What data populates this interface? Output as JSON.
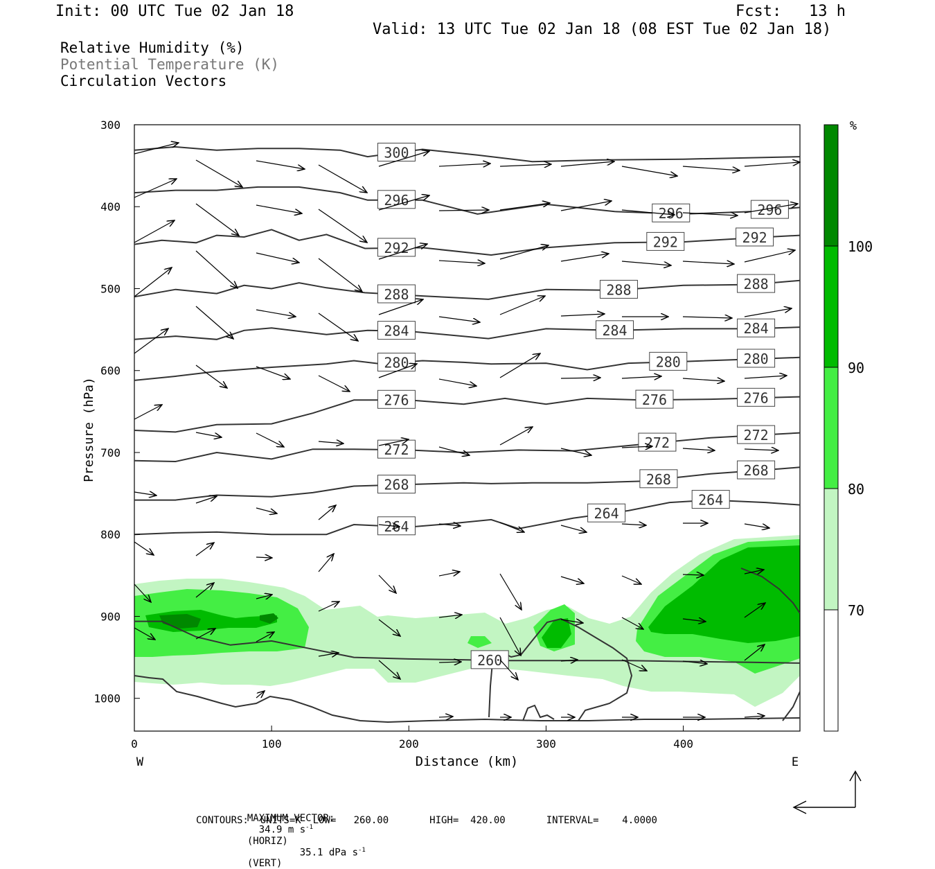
{
  "header": {
    "init": "Init: 00 UTC Tue 02 Jan 18",
    "fcst_label": "Fcst:",
    "fcst_value": "13 h",
    "valid": "Valid: 13 UTC Tue 02 Jan 18 (08 EST Tue 02 Jan 18)"
  },
  "legend": {
    "rh": "Relative Humidity (%)",
    "theta": "Potential Temperature (K)",
    "vectors": "Circulation Vectors"
  },
  "footer": {
    "max_vector_label": "MAXIMUM VECTOR:",
    "max_horiz": "34.9 m s",
    "horiz_tag": "(HORIZ)",
    "max_vert": "35.1 dPa s",
    "vert_tag": "(VERT)",
    "exponent": "-1",
    "contours": "CONTOURS:  UNITS=K  LOW=   260.00       HIGH=  420.00       INTERVAL=    4.0000"
  },
  "chart_data": {
    "type": "heatmap",
    "xlabel": "Distance (km)",
    "ylabel": "Pressure (hPa)",
    "x_left_label": "W",
    "x_right_label": "E",
    "xlim": [
      0,
      485
    ],
    "ylim": [
      1040,
      300
    ],
    "x_ticks": [
      0,
      100,
      200,
      300,
      400
    ],
    "y_ticks": [
      300,
      400,
      500,
      600,
      700,
      800,
      900,
      1000
    ],
    "colorbar": {
      "unit": "%",
      "levels": [
        70,
        80,
        90,
        100
      ],
      "colors": [
        "#ffffff",
        "#c2f5c2",
        "#44ee44",
        "#00bb00",
        "#008800"
      ]
    },
    "theta_contours": [
      {
        "value": 300,
        "label_x": 191,
        "points": [
          [
            0,
            331
          ],
          [
            30,
            327
          ],
          [
            60,
            331
          ],
          [
            90,
            329
          ],
          [
            120,
            329
          ],
          [
            150,
            331
          ],
          [
            170,
            339
          ],
          [
            210,
            330
          ],
          [
            250,
            337
          ],
          [
            290,
            345
          ],
          [
            340,
            343
          ],
          [
            400,
            342
          ],
          [
            485,
            339
          ]
        ]
      },
      {
        "value": 296,
        "label_x": 191,
        "points": [
          [
            0,
            383
          ],
          [
            30,
            380
          ],
          [
            60,
            380
          ],
          [
            90,
            376
          ],
          [
            120,
            376
          ],
          [
            150,
            383
          ],
          [
            170,
            392
          ],
          [
            210,
            392
          ],
          [
            250,
            409
          ],
          [
            300,
            397
          ],
          [
            350,
            406
          ],
          [
            400,
            409
          ],
          [
            450,
            406
          ],
          [
            485,
            401
          ]
        ]
      },
      {
        "value": 296,
        "label_x": 391,
        "points": []
      },
      {
        "value": 296,
        "label_x": 463,
        "points": []
      },
      {
        "value": 292,
        "label_x": 191,
        "points": [
          [
            0,
            446
          ],
          [
            20,
            441
          ],
          [
            45,
            444
          ],
          [
            60,
            435
          ],
          [
            80,
            437
          ],
          [
            100,
            428
          ],
          [
            120,
            441
          ],
          [
            140,
            434
          ],
          [
            168,
            451
          ],
          [
            210,
            450
          ],
          [
            260,
            459
          ],
          [
            300,
            450
          ],
          [
            350,
            444
          ],
          [
            400,
            443
          ],
          [
            450,
            438
          ],
          [
            485,
            435
          ]
        ]
      },
      {
        "value": 292,
        "label_x": 387,
        "points": []
      },
      {
        "value": 292,
        "label_x": 452,
        "points": []
      },
      {
        "value": 288,
        "label_x": 191,
        "points": [
          [
            0,
            510
          ],
          [
            30,
            501
          ],
          [
            60,
            506
          ],
          [
            80,
            496
          ],
          [
            100,
            500
          ],
          [
            120,
            493
          ],
          [
            140,
            499
          ],
          [
            168,
            505
          ],
          [
            210,
            509
          ],
          [
            258,
            513
          ],
          [
            300,
            501
          ],
          [
            350,
            502
          ],
          [
            400,
            496
          ],
          [
            450,
            495
          ],
          [
            485,
            490
          ]
        ]
      },
      {
        "value": 288,
        "label_x": 353,
        "points": []
      },
      {
        "value": 288,
        "label_x": 453,
        "points": []
      },
      {
        "value": 284,
        "label_x": 191,
        "points": [
          [
            0,
            562
          ],
          [
            30,
            558
          ],
          [
            60,
            562
          ],
          [
            80,
            551
          ],
          [
            100,
            548
          ],
          [
            140,
            556
          ],
          [
            170,
            551
          ],
          [
            200,
            552
          ],
          [
            258,
            561
          ],
          [
            300,
            549
          ],
          [
            350,
            551
          ],
          [
            400,
            549
          ],
          [
            450,
            549
          ],
          [
            485,
            547
          ]
        ]
      },
      {
        "value": 284,
        "label_x": 350,
        "points": []
      },
      {
        "value": 284,
        "label_x": 453,
        "points": []
      },
      {
        "value": 280,
        "label_x": 191,
        "points": [
          [
            0,
            612
          ],
          [
            30,
            607
          ],
          [
            60,
            601
          ],
          [
            100,
            596
          ],
          [
            140,
            592
          ],
          [
            160,
            588
          ],
          [
            180,
            592
          ],
          [
            210,
            588
          ],
          [
            240,
            590
          ],
          [
            260,
            592
          ],
          [
            300,
            591
          ],
          [
            330,
            599
          ],
          [
            360,
            591
          ],
          [
            400,
            589
          ],
          [
            450,
            586
          ],
          [
            485,
            584
          ]
        ]
      },
      {
        "value": 280,
        "label_x": 389,
        "points": []
      },
      {
        "value": 280,
        "label_x": 453,
        "points": []
      },
      {
        "value": 276,
        "label_x": 191,
        "points": [
          [
            0,
            673
          ],
          [
            30,
            675
          ],
          [
            60,
            666
          ],
          [
            100,
            665
          ],
          [
            130,
            652
          ],
          [
            160,
            636
          ],
          [
            200,
            636
          ],
          [
            240,
            641
          ],
          [
            270,
            634
          ],
          [
            300,
            641
          ],
          [
            330,
            634
          ],
          [
            370,
            636
          ],
          [
            420,
            635
          ],
          [
            485,
            632
          ]
        ]
      },
      {
        "value": 276,
        "label_x": 379,
        "points": []
      },
      {
        "value": 276,
        "label_x": 453,
        "points": []
      },
      {
        "value": 272,
        "label_x": 191,
        "points": [
          [
            0,
            710
          ],
          [
            30,
            711
          ],
          [
            60,
            700
          ],
          [
            100,
            708
          ],
          [
            130,
            696
          ],
          [
            160,
            696
          ],
          [
            200,
            697
          ],
          [
            240,
            700
          ],
          [
            280,
            697
          ],
          [
            320,
            698
          ],
          [
            370,
            690
          ],
          [
            420,
            682
          ],
          [
            485,
            676
          ]
        ]
      },
      {
        "value": 272,
        "label_x": 381,
        "points": []
      },
      {
        "value": 272,
        "label_x": 453,
        "points": []
      },
      {
        "value": 268,
        "label_x": 191,
        "points": [
          [
            0,
            758
          ],
          [
            30,
            758
          ],
          [
            60,
            752
          ],
          [
            100,
            754
          ],
          [
            130,
            749
          ],
          [
            160,
            741
          ],
          [
            200,
            739
          ],
          [
            240,
            737
          ],
          [
            260,
            738
          ],
          [
            290,
            737
          ],
          [
            330,
            737
          ],
          [
            370,
            735
          ],
          [
            420,
            726
          ],
          [
            470,
            720
          ],
          [
            485,
            718
          ]
        ]
      },
      {
        "value": 268,
        "label_x": 382,
        "points": []
      },
      {
        "value": 268,
        "label_x": 453,
        "points": []
      },
      {
        "value": 264,
        "label_x": 191,
        "points": [
          [
            0,
            800
          ],
          [
            30,
            798
          ],
          [
            60,
            797
          ],
          [
            100,
            800
          ],
          [
            140,
            800
          ],
          [
            160,
            788
          ],
          [
            200,
            791
          ],
          [
            230,
            787
          ],
          [
            260,
            782
          ],
          [
            280,
            793
          ],
          [
            320,
            780
          ],
          [
            360,
            771
          ],
          [
            390,
            761
          ],
          [
            420,
            758
          ],
          [
            460,
            761
          ],
          [
            485,
            764
          ]
        ]
      },
      {
        "value": 264,
        "label_x": 344,
        "points": []
      },
      {
        "value": 264,
        "label_x": 420,
        "points": []
      },
      {
        "value": 260,
        "label_x": 259,
        "points": [
          [
            0,
            906
          ],
          [
            20,
            906
          ],
          [
            45,
            925
          ],
          [
            70,
            935
          ],
          [
            100,
            930
          ],
          [
            130,
            940
          ],
          [
            160,
            950
          ],
          [
            200,
            952
          ],
          [
            240,
            953
          ],
          [
            270,
            954
          ],
          [
            300,
            954
          ],
          [
            330,
            954
          ],
          [
            360,
            954
          ],
          [
            400,
            955
          ],
          [
            450,
            956
          ],
          [
            485,
            957
          ]
        ]
      }
    ]
  }
}
